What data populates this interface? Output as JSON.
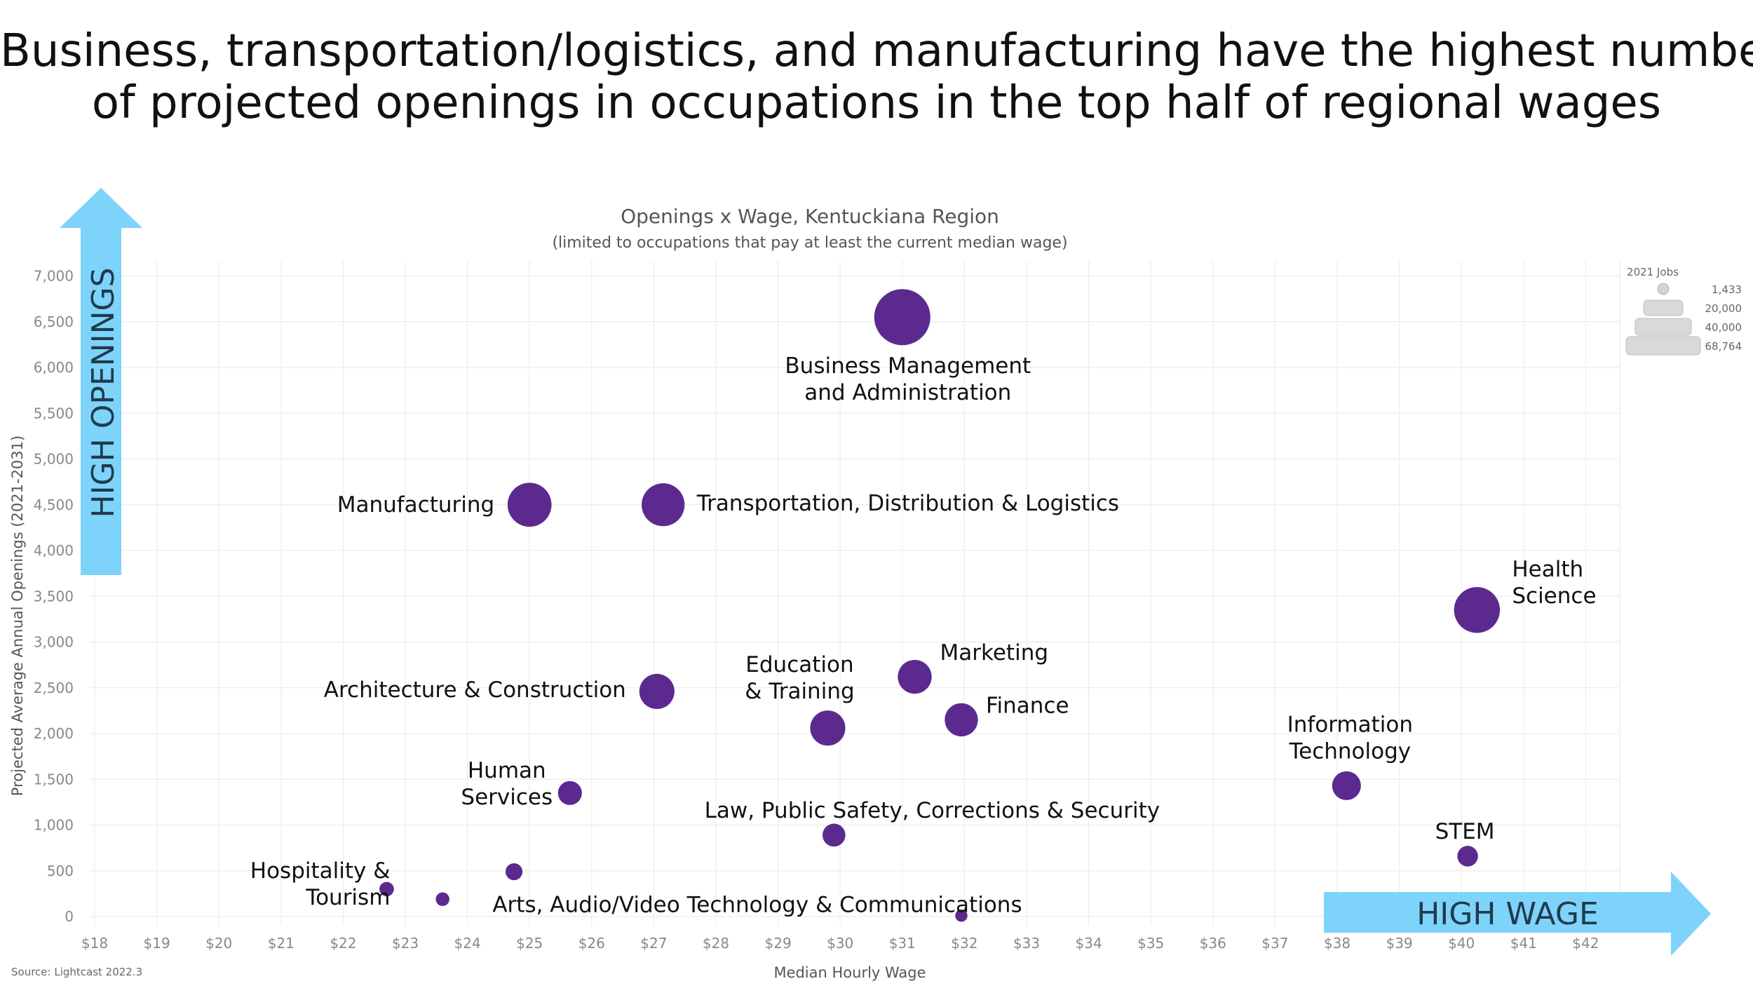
{
  "headline": {
    "line1": "Business, transportation/logistics, and manufacturing have the highest number",
    "line2": "of projected openings in occupations in the top half of regional wages"
  },
  "arrows": {
    "vertical_label": "HIGH OPENINGS",
    "horizontal_label": "HIGH WAGE",
    "color": "#7ed3fb"
  },
  "source": "Source: Lightcast 2022.3",
  "chart_data": {
    "type": "scatter",
    "title": "Openings x Wage, Kentuckiana Region",
    "subtitle": "(limited to occupations that pay at least the current median wage)",
    "xlabel": "Median Hourly Wage",
    "ylabel": "Projected Average Annual Openings (2021-2031)",
    "xlim": [
      18,
      42
    ],
    "ylim": [
      0,
      7000
    ],
    "x_ticks": [
      "$18",
      "$19",
      "$20",
      "$21",
      "$22",
      "$23",
      "$24",
      "$25",
      "$26",
      "$27",
      "$28",
      "$29",
      "$30",
      "$31",
      "$32",
      "$33",
      "$34",
      "$35",
      "$36",
      "$37",
      "$38",
      "$39",
      "$40",
      "$41",
      "$42"
    ],
    "y_ticks": [
      "0",
      "500",
      "1,000",
      "1,500",
      "2,000",
      "2,500",
      "3,000",
      "3,500",
      "4,000",
      "4,500",
      "5,000",
      "5,500",
      "6,000",
      "6,500",
      "7,000"
    ],
    "grid": true,
    "color": "#5c2a8f",
    "size_legend": {
      "title": "2021 Jobs",
      "entries": [
        {
          "label": "1,433",
          "jobs": 1433
        },
        {
          "label": "20,000",
          "jobs": 20000
        },
        {
          "label": "40,000",
          "jobs": 40000
        },
        {
          "label": "68,764",
          "jobs": 68764
        }
      ],
      "placement": "top-right"
    },
    "points": [
      {
        "label": [
          "Business Management",
          "and Administration"
        ],
        "x": 31.0,
        "y": 6550,
        "jobs": 68764
      },
      {
        "label": [
          "Manufacturing"
        ],
        "x": 25.0,
        "y": 4500,
        "jobs": 40000
      },
      {
        "label": [
          "Transportation, Distribution & Logistics"
        ],
        "x": 27.15,
        "y": 4500,
        "jobs": 38000
      },
      {
        "label": [
          "Health",
          "Science"
        ],
        "x": 40.25,
        "y": 3350,
        "jobs": 44000
      },
      {
        "label": [
          "Architecture & Construction"
        ],
        "x": 27.05,
        "y": 2460,
        "jobs": 24000
      },
      {
        "label": [
          "Education",
          "& Training"
        ],
        "x": 29.8,
        "y": 2060,
        "jobs": 24000
      },
      {
        "label": [
          "Marketing"
        ],
        "x": 31.2,
        "y": 2620,
        "jobs": 22000
      },
      {
        "label": [
          "Finance"
        ],
        "x": 31.95,
        "y": 2150,
        "jobs": 21000
      },
      {
        "label": [
          "Information",
          "Technology"
        ],
        "x": 38.15,
        "y": 1430,
        "jobs": 15000
      },
      {
        "label": [
          "Human",
          "Services"
        ],
        "x": 25.65,
        "y": 1350,
        "jobs": 9500
      },
      {
        "label": [
          "Law, Public Safety, Corrections & Security"
        ],
        "x": 29.9,
        "y": 890,
        "jobs": 8500
      },
      {
        "label": [
          "STEM"
        ],
        "x": 40.1,
        "y": 660,
        "jobs": 6500
      },
      {
        "label": [
          "Hospitality &",
          "Tourism"
        ],
        "x": 22.7,
        "y": 300,
        "jobs": 2400
      },
      {
        "label": [],
        "x": 23.6,
        "y": 190,
        "jobs": 2000
      },
      {
        "label": [],
        "x": 24.75,
        "y": 490,
        "jobs": 3800
      },
      {
        "label": [
          "Arts, Audio/Video Technology & Communications"
        ],
        "x": 31.95,
        "y": 10,
        "jobs": 1433
      }
    ]
  }
}
